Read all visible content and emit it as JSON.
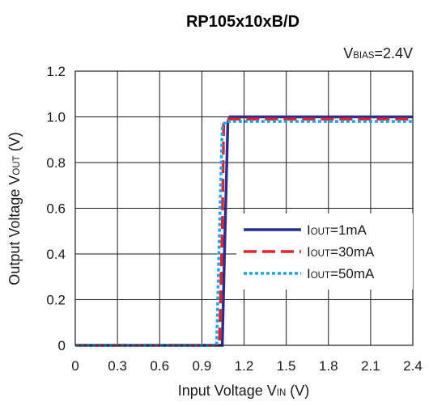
{
  "chart_data": {
    "type": "line",
    "title": "RP105x10xB/D",
    "annotation": {
      "main": "V",
      "sub": "BIAS",
      "suffix": "=2.4V"
    },
    "xlabel": {
      "main": "Input Voltage V",
      "sub": "IN",
      "suffix": " (V)"
    },
    "ylabel": {
      "main": "Output Voltage V",
      "sub": "OUT",
      "suffix": " (V)"
    },
    "xlim": [
      0,
      2.4
    ],
    "ylim": [
      0,
      1.2
    ],
    "xticks": [
      "0",
      "0.3",
      "0.6",
      "0.9",
      "1.2",
      "1.5",
      "1.8",
      "2.1",
      "2.4"
    ],
    "yticks": [
      "0",
      "0.2",
      "0.4",
      "0.6",
      "0.8",
      "1.0",
      "1.2"
    ],
    "grid": true,
    "legend_position": "right-middle",
    "series": [
      {
        "name_main": "I",
        "name_sub": "OUT",
        "name_suffix": "=1mA",
        "color": "#2a2e8f",
        "style": "solid",
        "x": [
          0,
          1.045,
          1.065,
          1.085,
          1.1,
          1.2,
          1.5,
          1.8,
          2.1,
          2.4
        ],
        "y": [
          0,
          0,
          0.5,
          0.98,
          1.0,
          1.0,
          1.0,
          1.0,
          1.0,
          1.0
        ]
      },
      {
        "name_main": "I",
        "name_sub": "OUT",
        "name_suffix": "=30mA",
        "color": "#e8202a",
        "style": "dashed",
        "x": [
          0,
          1.025,
          1.045,
          1.055,
          1.08,
          1.2,
          1.5,
          1.8,
          2.1,
          2.4
        ],
        "y": [
          0,
          0,
          0.5,
          0.97,
          0.99,
          0.99,
          0.99,
          0.99,
          0.99,
          0.99
        ]
      },
      {
        "name_main": "I",
        "name_sub": "OUT",
        "name_suffix": "=50mA",
        "color": "#1aa7e6",
        "style": "dotted",
        "x": [
          0,
          1.005,
          1.025,
          1.045,
          1.07,
          1.2,
          1.5,
          1.8,
          2.1,
          2.4
        ],
        "y": [
          0,
          0,
          0.5,
          0.96,
          0.98,
          0.98,
          0.98,
          0.98,
          0.98,
          0.98
        ]
      }
    ]
  }
}
